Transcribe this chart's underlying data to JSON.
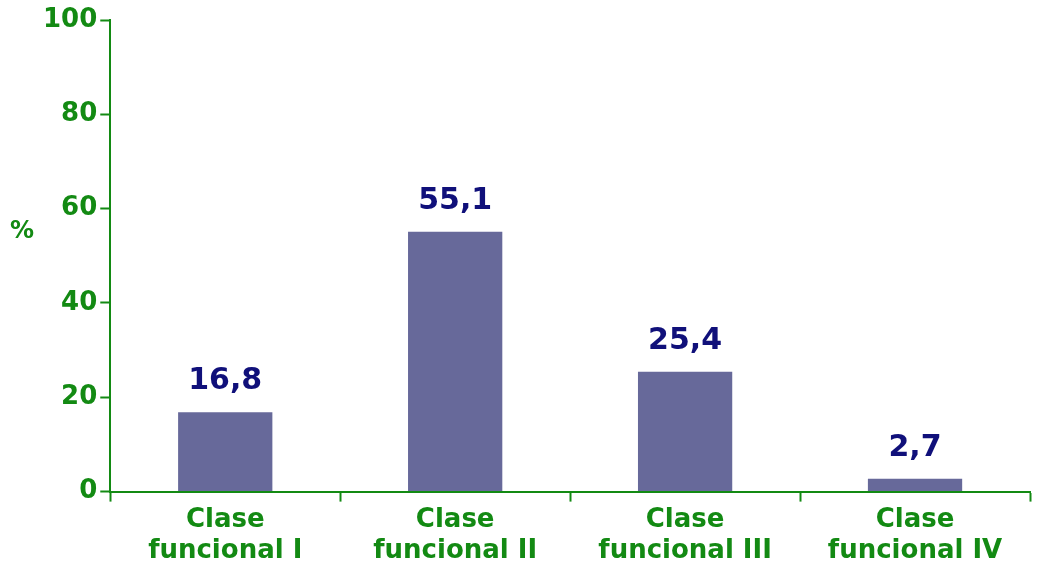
{
  "chart_data": {
    "type": "bar",
    "ylabel": "%",
    "categories": [
      "Clase funcional I",
      "Clase funcional II",
      "Clase funcional III",
      "Clase funcional IV"
    ],
    "values": [
      16.8,
      55.1,
      25.4,
      2.7
    ],
    "value_labels": [
      "16,8",
      "55,1",
      "25,4",
      "2,7"
    ],
    "color": "#67699a",
    "ylim": [
      0,
      100
    ],
    "yticks": [
      0,
      20,
      40,
      60,
      80,
      100
    ],
    "grid": false,
    "legend": false
  }
}
